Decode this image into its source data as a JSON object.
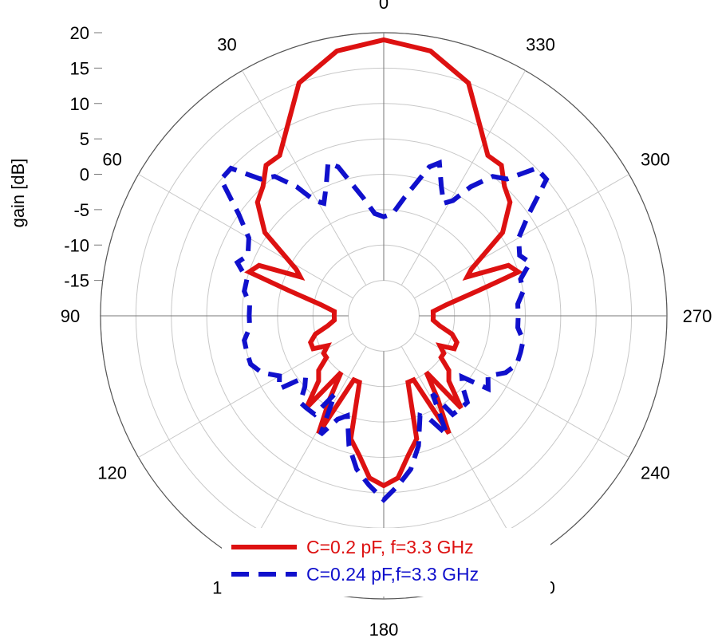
{
  "chart_data": {
    "type": "polar-line",
    "ylabel": "gain [dB]",
    "r_ticks": [
      20,
      15,
      10,
      5,
      0,
      -5,
      -10,
      -15
    ],
    "rlim": [
      -20,
      20
    ],
    "angle_ticks": [
      0,
      30,
      60,
      90,
      120,
      150,
      180,
      210,
      240,
      270,
      300,
      330
    ],
    "angle_tick_labels": [
      "0",
      "30",
      "60",
      "90",
      "120",
      "150",
      "180",
      "210",
      "240",
      "270",
      "300",
      "330"
    ],
    "angle_direction": "counterclockwise",
    "zero_angle": "top",
    "grid": true,
    "legend_position": "bottom-center",
    "series": [
      {
        "name": "C=0.2 pF, f=3.3 GHz",
        "color": "#dd1111",
        "dash": "solid",
        "points": [
          [
            0,
            19
          ],
          [
            10,
            18
          ],
          [
            20,
            15
          ],
          [
            27,
            10
          ],
          [
            33,
            7
          ],
          [
            38,
            7
          ],
          [
            43,
            5
          ],
          [
            48,
            4
          ],
          [
            55,
            0.5
          ],
          [
            62,
            -6
          ],
          [
            65,
            -7
          ],
          [
            68,
            -1
          ],
          [
            72,
            0
          ],
          [
            75,
            -6
          ],
          [
            80,
            -11
          ],
          [
            85,
            -13
          ],
          [
            90,
            -13
          ],
          [
            95,
            -13
          ],
          [
            100,
            -12
          ],
          [
            105,
            -10
          ],
          [
            110,
            -9
          ],
          [
            115,
            -9
          ],
          [
            118,
            -11
          ],
          [
            122,
            -10
          ],
          [
            126,
            -10
          ],
          [
            130,
            -8
          ],
          [
            135,
            -7
          ],
          [
            140,
            -3
          ],
          [
            143,
            -10
          ],
          [
            147,
            -6
          ],
          [
            151,
            -1
          ],
          [
            155,
            -10
          ],
          [
            160,
            -10
          ],
          [
            165,
            -2
          ],
          [
            170,
            0
          ],
          [
            175,
            3
          ],
          [
            180,
            4
          ],
          [
            185,
            3
          ],
          [
            190,
            0
          ],
          [
            195,
            -2
          ],
          [
            200,
            -10
          ],
          [
            205,
            -10
          ],
          [
            209,
            -1
          ],
          [
            213,
            -6
          ],
          [
            217,
            -10
          ],
          [
            220,
            -3
          ],
          [
            225,
            -7
          ],
          [
            230,
            -8
          ],
          [
            234,
            -10
          ],
          [
            238,
            -10
          ],
          [
            242,
            -11
          ],
          [
            245,
            -9
          ],
          [
            250,
            -9
          ],
          [
            255,
            -10
          ],
          [
            260,
            -12
          ],
          [
            265,
            -13
          ],
          [
            270,
            -13
          ],
          [
            275,
            -13
          ],
          [
            280,
            -11
          ],
          [
            285,
            -6
          ],
          [
            288,
            0
          ],
          [
            292,
            -1
          ],
          [
            295,
            -7
          ],
          [
            298,
            -6
          ],
          [
            305,
            0.5
          ],
          [
            312,
            4
          ],
          [
            317,
            5
          ],
          [
            322,
            7
          ],
          [
            327,
            7
          ],
          [
            333,
            10
          ],
          [
            340,
            15
          ],
          [
            350,
            18
          ],
          [
            360,
            19
          ]
        ]
      },
      {
        "name": "C=0.24 pF,f=3.3 GHz",
        "color": "#1010cc",
        "dash": "dashed",
        "points": [
          [
            0,
            -6
          ],
          [
            5,
            -5.5
          ],
          [
            10,
            -3
          ],
          [
            14,
            -0.5
          ],
          [
            17,
            2
          ],
          [
            20,
            3
          ],
          [
            24,
            0
          ],
          [
            28,
            -2
          ],
          [
            31,
            -1
          ],
          [
            34,
            2
          ],
          [
            38,
            5
          ],
          [
            42,
            6
          ],
          [
            46,
            10
          ],
          [
            50,
            10
          ],
          [
            55,
            5
          ],
          [
            60,
            2
          ],
          [
            66,
            1
          ],
          [
            70,
            2
          ],
          [
            75,
            0
          ],
          [
            80,
            0
          ],
          [
            85,
            -1
          ],
          [
            90,
            -1
          ],
          [
            95,
            -1
          ],
          [
            100,
            0
          ],
          [
            105,
            0
          ],
          [
            110,
            0
          ],
          [
            115,
            -1
          ],
          [
            120,
            -3
          ],
          [
            125,
            -2
          ],
          [
            128,
            -6
          ],
          [
            132,
            -5
          ],
          [
            136,
            -3
          ],
          [
            140,
            -3
          ],
          [
            145,
            -3
          ],
          [
            148,
            -7
          ],
          [
            152,
            -1
          ],
          [
            156,
            -4
          ],
          [
            160,
            -5
          ],
          [
            165,
            -1
          ],
          [
            170,
            2
          ],
          [
            175,
            4
          ],
          [
            180,
            6
          ],
          [
            185,
            4
          ],
          [
            190,
            2
          ],
          [
            195,
            -1
          ],
          [
            200,
            -5
          ],
          [
            204,
            -4
          ],
          [
            208,
            -1
          ],
          [
            212,
            -7
          ],
          [
            215,
            -3
          ],
          [
            220,
            -3
          ],
          [
            224,
            -3
          ],
          [
            228,
            -5
          ],
          [
            232,
            -6
          ],
          [
            235,
            -2
          ],
          [
            240,
            -3
          ],
          [
            245,
            -1
          ],
          [
            250,
            0
          ],
          [
            255,
            0
          ],
          [
            260,
            0
          ],
          [
            265,
            -1
          ],
          [
            270,
            -1
          ],
          [
            275,
            -1
          ],
          [
            280,
            0
          ],
          [
            285,
            0
          ],
          [
            290,
            2
          ],
          [
            294,
            1
          ],
          [
            300,
            2
          ],
          [
            305,
            5
          ],
          [
            310,
            10
          ],
          [
            314,
            10
          ],
          [
            318,
            6
          ],
          [
            322,
            5
          ],
          [
            326,
            2
          ],
          [
            329,
            -1
          ],
          [
            332,
            -2
          ],
          [
            336,
            0
          ],
          [
            340,
            3
          ],
          [
            343,
            2
          ],
          [
            346,
            -0.5
          ],
          [
            350,
            -3
          ],
          [
            355,
            -5.5
          ],
          [
            360,
            -6
          ]
        ]
      }
    ]
  }
}
